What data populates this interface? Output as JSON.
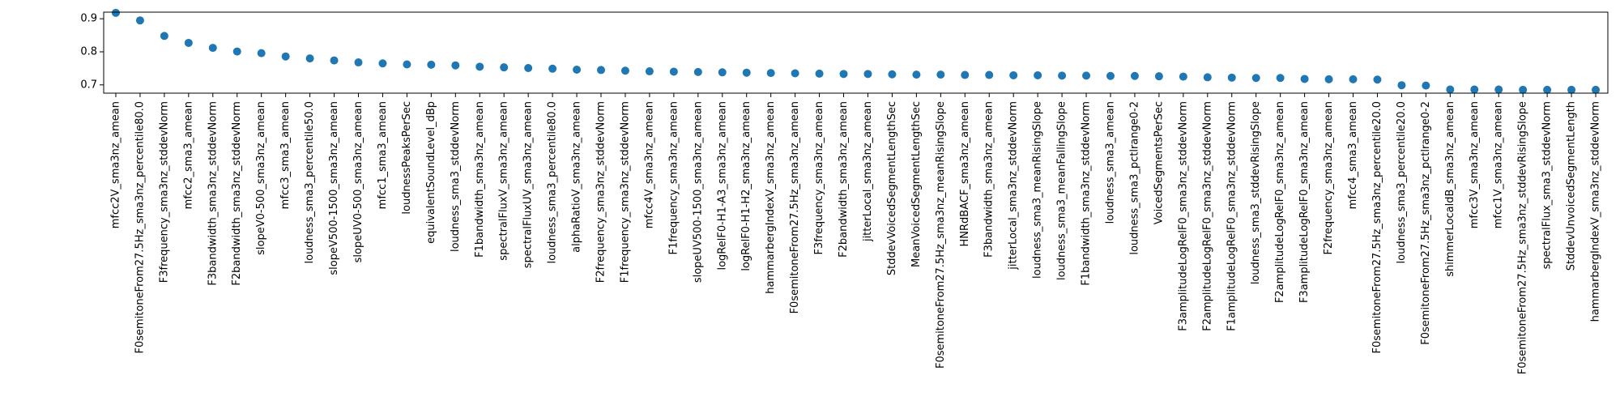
{
  "chart_data": {
    "type": "scatter",
    "title": "",
    "xlabel": "",
    "ylabel": "",
    "ylim": [
      0.675,
      0.92
    ],
    "yticks": [
      0.7,
      0.8,
      0.9
    ],
    "ytick_labels": [
      "0.7",
      "0.8",
      "0.9"
    ],
    "grid": false,
    "marker_color": "#1f77b4",
    "categories": [
      "mfcc2V_sma3nz_amean",
      "F0semitoneFrom27.5Hz_sma3nz_percentile80.0",
      "F3frequency_sma3nz_stddevNorm",
      "mfcc2_sma3_amean",
      "F3bandwidth_sma3nz_stddevNorm",
      "F2bandwidth_sma3nz_stddevNorm",
      "slopeV0-500_sma3nz_amean",
      "mfcc3_sma3_amean",
      "loudness_sma3_percentile50.0",
      "slopeV500-1500_sma3nz_amean",
      "slopeUV0-500_sma3nz_amean",
      "mfcc1_sma3_amean",
      "loudnessPeaksPerSec",
      "equivalentSoundLevel_dBp",
      "loudness_sma3_stddevNorm",
      "F1bandwidth_sma3nz_amean",
      "spectralFluxV_sma3nz_amean",
      "spectralFluxUV_sma3nz_amean",
      "loudness_sma3_percentile80.0",
      "alphaRatioV_sma3nz_amean",
      "F2frequency_sma3nz_stddevNorm",
      "F1frequency_sma3nz_stddevNorm",
      "mfcc4V_sma3nz_amean",
      "F1frequency_sma3nz_amean",
      "slopeUV500-1500_sma3nz_amean",
      "logRelF0-H1-A3_sma3nz_amean",
      "logRelF0-H1-H2_sma3nz_amean",
      "hammarbergIndexV_sma3nz_amean",
      "F0semitoneFrom27.5Hz_sma3nz_amean",
      "F3frequency_sma3nz_amean",
      "F2bandwidth_sma3nz_amean",
      "jitterLocal_sma3nz_amean",
      "StddevVoicedSegmentLengthSec",
      "MeanVoicedSegmentLengthSec",
      "F0semitoneFrom27.5Hz_sma3nz_meanRisingSlope",
      "HNRdBACF_sma3nz_amean",
      "F3bandwidth_sma3nz_amean",
      "jitterLocal_sma3nz_stddevNorm",
      "loudness_sma3_meanRisingSlope",
      "loudness_sma3_meanFallingSlope",
      "F1bandwidth_sma3nz_stddevNorm",
      "loudness_sma3_amean",
      "loudness_sma3_pctlrange0-2",
      "VoicedSegmentsPerSec",
      "F3amplitudeLogRelF0_sma3nz_stddevNorm",
      "F2amplitudeLogRelF0_sma3nz_stddevNorm",
      "F1amplitudeLogRelF0_sma3nz_stddevNorm",
      "loudness_sma3_stddevRisingSlope",
      "F2amplitudeLogRelF0_sma3nz_amean",
      "F3amplitudeLogRelF0_sma3nz_amean",
      "F2frequency_sma3nz_amean",
      "mfcc4_sma3_amean",
      "F0semitoneFrom27.5Hz_sma3nz_percentile20.0",
      "loudness_sma3_percentile20.0",
      "F0semitoneFrom27.5Hz_sma3nz_pctlrange0-2",
      "shimmerLocaldB_sma3nz_amean",
      "mfcc3V_sma3nz_amean",
      "mfcc1V_sma3nz_amean",
      "F0semitoneFrom27.5Hz_sma3nz_stddevRisingSlope",
      "spectralFlux_sma3_stddevNorm",
      "StddevUnvoicedSegmentLength",
      "hammarbergIndexV_sma3nz_stddevNorm"
    ],
    "values": [
      0.918,
      0.895,
      0.848,
      0.827,
      0.812,
      0.801,
      0.796,
      0.786,
      0.78,
      0.774,
      0.768,
      0.765,
      0.762,
      0.761,
      0.759,
      0.755,
      0.753,
      0.751,
      0.749,
      0.746,
      0.745,
      0.743,
      0.741,
      0.74,
      0.739,
      0.738,
      0.737,
      0.736,
      0.735,
      0.734,
      0.733,
      0.733,
      0.732,
      0.731,
      0.731,
      0.73,
      0.73,
      0.729,
      0.729,
      0.728,
      0.728,
      0.727,
      0.727,
      0.726,
      0.725,
      0.723,
      0.722,
      0.721,
      0.721,
      0.718,
      0.717,
      0.717,
      0.716,
      0.699,
      0.698,
      0.686,
      0.686,
      0.686,
      0.685,
      0.685,
      0.685,
      0.685
    ]
  }
}
